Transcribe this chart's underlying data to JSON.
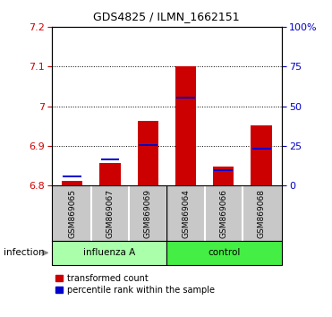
{
  "title": "GDS4825 / ILMN_1662151",
  "samples": [
    "GSM869065",
    "GSM869067",
    "GSM869069",
    "GSM869064",
    "GSM869066",
    "GSM869068"
  ],
  "ylim_left": [
    6.8,
    7.2
  ],
  "ylim_right": [
    0,
    100
  ],
  "yticks_left": [
    6.8,
    6.9,
    7.0,
    7.1,
    7.2
  ],
  "ytick_labels_left": [
    "6.8",
    "6.9",
    "7",
    "7.1",
    "7.2"
  ],
  "yticks_right": [
    0,
    25,
    50,
    75,
    100
  ],
  "ytick_labels_right": [
    "0",
    "25",
    "50",
    "75",
    "100%"
  ],
  "bar_base": 6.8,
  "red_values": [
    6.812,
    6.857,
    6.962,
    7.101,
    6.847,
    6.952
  ],
  "blue_values": [
    6.822,
    6.865,
    6.902,
    7.022,
    6.838,
    6.892
  ],
  "red_color": "#CC0000",
  "blue_color": "#0000CC",
  "bar_width": 0.55,
  "left_axis_color": "#CC0000",
  "right_axis_color": "#0000CC",
  "sample_area_color": "#C8C8C8",
  "influenza_color": "#AAFFAA",
  "control_color": "#44EE44",
  "legend_items": [
    "transformed count",
    "percentile rank within the sample"
  ]
}
